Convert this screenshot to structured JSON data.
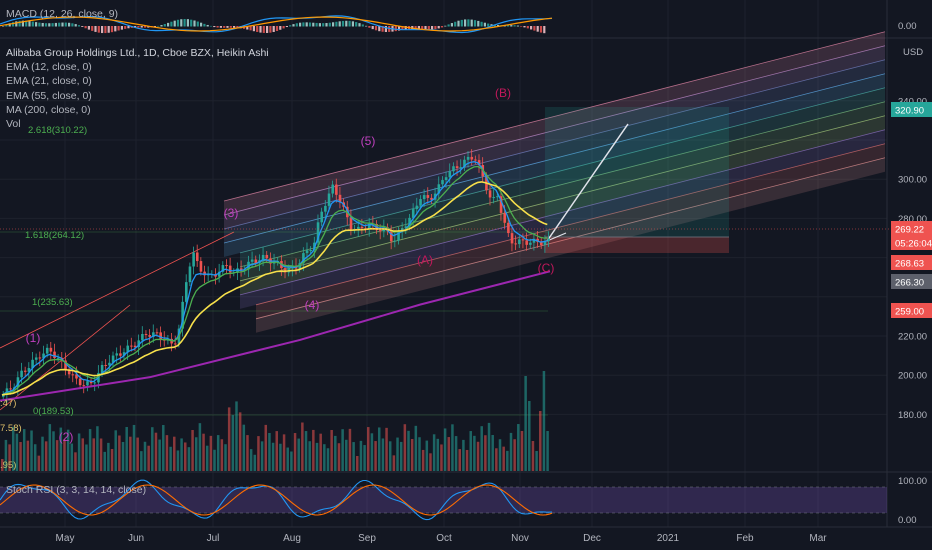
{
  "header": {
    "symbol_line": "Alibaba Group Holdings Ltd., 1D, Cboe BZX, Heikin Ashi",
    "indicators": [
      "EMA (12, close, 0)",
      "EMA (21, close, 0)",
      "EMA (55, close, 0)",
      "MA (200, close, 0)",
      "Vol"
    ],
    "macd": "MACD (12, 26, close, 9)",
    "stoch": "Stoch RSI (3, 3, 14, 14, close)",
    "currency": "USD"
  },
  "colors": {
    "background": "#131722",
    "grid": "#1e222d",
    "up": "#26a69a",
    "down": "#ef5350",
    "ema_fast": "#2196f3",
    "ema_mid": "#4caf50",
    "ema_slow": "#f7e04b",
    "ma200": "#9c27b0",
    "wave_label": "#c2185b",
    "fib_label": "#4caf50"
  },
  "chart_data": {
    "type": "candlestick",
    "x_axis_labels": [
      "May",
      "Jun",
      "Jul",
      "Aug",
      "Sep",
      "Oct",
      "Nov",
      "Dec",
      "2021",
      "Feb",
      "Mar"
    ],
    "y_axis_ticks": [
      180,
      200,
      220,
      240,
      260,
      280,
      300,
      320,
      340
    ],
    "y_range": [
      170,
      350
    ],
    "price_tags": [
      {
        "value": "320.90",
        "color": "#26a69a"
      },
      {
        "value": "269.22",
        "color": "#ef5350"
      },
      {
        "value": "05:26:04",
        "color": "#ef5350"
      },
      {
        "value": "268.63",
        "color": "#ef5350"
      },
      {
        "value": "266.30",
        "color": "#5d606b"
      },
      {
        "value": "259.00",
        "color": "#ef5350"
      }
    ],
    "macd_axis": [
      "0.00"
    ],
    "stoch_axis": [
      "100.00",
      "0.00"
    ],
    "wave_labels": [
      "(1)",
      "(2)",
      "(3)",
      "(4)",
      "(5)",
      "(A)",
      "(B)",
      "(C)"
    ],
    "fib_labels": [
      "2.618(310.22)",
      "1.618(264.12)",
      "1(235.63)",
      "0(189.53)"
    ],
    "partial_labels": [
      ":47)",
      "7.58)",
      ".95)"
    ],
    "price_path": [
      [
        "Apr 23",
        189
      ],
      [
        "Apr 28",
        195
      ],
      [
        "May 1",
        201
      ],
      [
        "May 5",
        206
      ],
      [
        "May 8",
        210
      ],
      [
        "May 12",
        213
      ],
      [
        "May 15",
        209
      ],
      [
        "May 19",
        203
      ],
      [
        "May 22",
        198
      ],
      [
        "May 26",
        195
      ],
      [
        "May 29",
        196
      ],
      [
        "Jun 2",
        204
      ],
      [
        "Jun 5",
        208
      ],
      [
        "Jun 10",
        212
      ],
      [
        "Jun 15",
        216
      ],
      [
        "Jun 19",
        221
      ],
      [
        "Jun 23",
        221
      ],
      [
        "Jun 26",
        219
      ],
      [
        "Jun 30",
        215
      ],
      [
        "Jul 2",
        222
      ],
      [
        "Jul 6",
        255
      ],
      [
        "Jul 8",
        262
      ],
      [
        "Jul 10",
        255
      ],
      [
        "Jul 14",
        250
      ],
      [
        "Jul 17",
        252
      ],
      [
        "Jul 21",
        256
      ],
      [
        "Jul 24",
        252
      ],
      [
        "Jul 28",
        255
      ],
      [
        "Jul 31",
        258
      ],
      [
        "Aug 5",
        260
      ],
      [
        "Aug 10",
        257
      ],
      [
        "Aug 14",
        253
      ],
      [
        "Aug 18",
        256
      ],
      [
        "Aug 21",
        262
      ],
      [
        "Aug 25",
        268
      ],
      [
        "Aug 27",
        282
      ],
      [
        "Sep 1",
        296
      ],
      [
        "Sep 3",
        292
      ],
      [
        "Sep 8",
        276
      ],
      [
        "Sep 11",
        274
      ],
      [
        "Sep 15",
        277
      ],
      [
        "Sep 18",
        275
      ],
      [
        "Sep 22",
        274
      ],
      [
        "Sep 25",
        268
      ],
      [
        "Sep 29",
        276
      ],
      [
        "Oct 2",
        281
      ],
      [
        "Oct 6",
        292
      ],
      [
        "Oct 9",
        289
      ],
      [
        "Oct 13",
        296
      ],
      [
        "Oct 16",
        303
      ],
      [
        "Oct 20",
        306
      ],
      [
        "Oct 23",
        309
      ],
      [
        "Oct 27",
        312
      ],
      [
        "Oct 30",
        302
      ],
      [
        "Nov 3",
        288
      ],
      [
        "Nov 5",
        292
      ],
      [
        "Nov 9",
        272
      ],
      [
        "Nov 11",
        268
      ]
    ],
    "volume_bars": 150,
    "annotations": [
      "ascending parallel channel",
      "Fibonacci extension levels",
      "projection arrow"
    ]
  }
}
